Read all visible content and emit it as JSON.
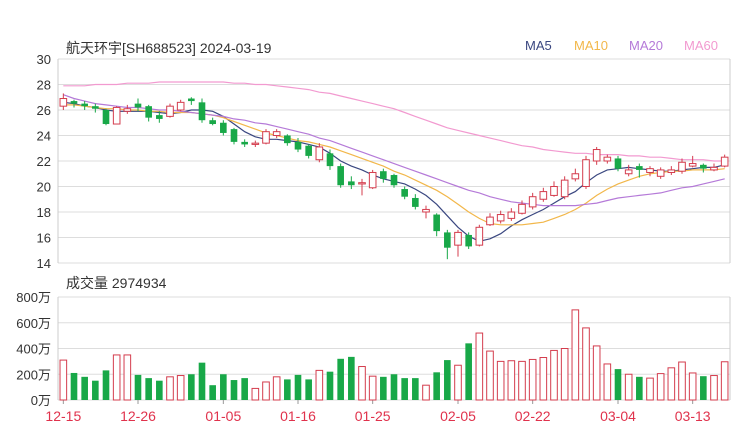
{
  "header": {
    "stock_label": "航天环宇[SH688523]",
    "date": "2024-03-19",
    "volume_label": "成交量",
    "volume_value": "2974934"
  },
  "legend": [
    {
      "label": "MA5",
      "color": "#3a4780"
    },
    {
      "label": "MA10",
      "color": "#f2b74a"
    },
    {
      "label": "MA20",
      "color": "#b57ad8"
    },
    {
      "label": "MA60",
      "color": "#f29ad0"
    }
  ],
  "colors": {
    "up": "#d43c4d",
    "down": "#18a848",
    "grid": "#dddddd",
    "axis_text": "#333333",
    "date_text": "#e0324c"
  },
  "chart_data": {
    "type": "candlestick",
    "price_axis": {
      "min": 14,
      "max": 30,
      "ticks": [
        14,
        16,
        18,
        20,
        22,
        24,
        26,
        28,
        30
      ]
    },
    "volume_axis": {
      "min": 0,
      "max": 800,
      "unit": "万",
      "ticks": [
        0,
        200,
        400,
        600,
        800
      ],
      "tick_labels": [
        "0万",
        "200万",
        "400万",
        "600万",
        "800万"
      ]
    },
    "x_labels": [
      {
        "label": "12-15",
        "index": 0
      },
      {
        "label": "12-26",
        "index": 7
      },
      {
        "label": "01-05",
        "index": 15
      },
      {
        "label": "01-16",
        "index": 22
      },
      {
        "label": "01-25",
        "index": 29
      },
      {
        "label": "02-05",
        "index": 37
      },
      {
        "label": "02-22",
        "index": 44
      },
      {
        "label": "03-04",
        "index": 52
      },
      {
        "label": "03-13",
        "index": 59
      }
    ],
    "candles": [
      [
        26.3,
        26.9,
        27.3,
        26.0,
        310
      ],
      [
        26.7,
        26.5,
        26.8,
        26.2,
        210
      ],
      [
        26.5,
        26.3,
        26.7,
        26.0,
        180
      ],
      [
        26.3,
        26.1,
        26.5,
        25.8,
        150
      ],
      [
        26.0,
        24.9,
        26.1,
        24.8,
        230
      ],
      [
        24.9,
        26.2,
        26.3,
        24.9,
        350
      ],
      [
        25.9,
        26.1,
        26.4,
        25.7,
        350
      ],
      [
        26.5,
        26.2,
        26.9,
        25.9,
        195
      ],
      [
        26.3,
        25.4,
        26.4,
        25.1,
        170
      ],
      [
        25.6,
        25.3,
        25.9,
        25.0,
        150
      ],
      [
        25.5,
        26.3,
        26.5,
        25.4,
        180
      ],
      [
        26.0,
        26.6,
        26.8,
        25.9,
        190
      ],
      [
        26.9,
        26.7,
        27.0,
        26.4,
        200
      ],
      [
        26.6,
        25.2,
        26.9,
        25.0,
        290
      ],
      [
        25.2,
        24.9,
        25.4,
        24.8,
        115
      ],
      [
        25.0,
        24.2,
        25.2,
        24.0,
        200
      ],
      [
        24.5,
        23.5,
        24.6,
        23.3,
        155
      ],
      [
        23.5,
        23.3,
        23.7,
        23.1,
        170
      ],
      [
        23.3,
        23.4,
        23.6,
        23.1,
        90
      ],
      [
        23.4,
        24.3,
        24.5,
        23.3,
        140
      ],
      [
        24.0,
        24.3,
        24.5,
        23.8,
        180
      ],
      [
        24.0,
        23.4,
        24.1,
        23.2,
        160
      ],
      [
        23.5,
        22.9,
        23.8,
        22.7,
        195
      ],
      [
        23.2,
        22.4,
        23.3,
        22.2,
        160
      ],
      [
        22.1,
        23.1,
        23.4,
        21.9,
        230
      ],
      [
        22.6,
        21.6,
        22.9,
        21.3,
        220
      ],
      [
        21.6,
        20.1,
        21.8,
        19.9,
        320
      ],
      [
        20.4,
        20.1,
        20.8,
        19.8,
        335
      ],
      [
        20.2,
        20.3,
        20.6,
        19.3,
        260
      ],
      [
        19.9,
        21.1,
        21.3,
        19.8,
        185
      ],
      [
        21.2,
        20.6,
        21.4,
        20.3,
        180
      ],
      [
        20.9,
        20.1,
        21.0,
        19.9,
        200
      ],
      [
        19.8,
        19.2,
        20.0,
        19.0,
        170
      ],
      [
        19.1,
        18.4,
        19.4,
        18.2,
        170
      ],
      [
        18.0,
        18.2,
        18.5,
        17.5,
        115
      ],
      [
        17.8,
        16.5,
        17.9,
        16.1,
        215
      ],
      [
        16.4,
        15.2,
        16.6,
        14.3,
        310
      ],
      [
        15.4,
        16.4,
        16.6,
        14.5,
        270
      ],
      [
        16.2,
        15.3,
        16.4,
        15.1,
        440
      ],
      [
        15.4,
        16.8,
        17.0,
        15.3,
        520
      ],
      [
        17.0,
        17.6,
        17.9,
        16.9,
        380
      ],
      [
        17.3,
        17.8,
        18.1,
        17.1,
        300
      ],
      [
        17.5,
        18.0,
        18.3,
        17.3,
        305
      ],
      [
        17.9,
        18.6,
        18.9,
        17.8,
        300
      ],
      [
        18.4,
        19.2,
        19.5,
        18.2,
        315
      ],
      [
        19.0,
        19.6,
        19.9,
        18.8,
        330
      ],
      [
        19.3,
        20.0,
        20.4,
        19.2,
        385
      ],
      [
        19.2,
        20.5,
        20.8,
        19.0,
        400
      ],
      [
        20.6,
        21.0,
        21.4,
        20.4,
        700
      ],
      [
        20.0,
        22.1,
        22.4,
        19.8,
        560
      ],
      [
        22.0,
        22.9,
        23.1,
        21.7,
        420
      ],
      [
        22.0,
        22.3,
        22.5,
        21.8,
        280
      ],
      [
        22.2,
        21.4,
        22.4,
        21.2,
        240
      ],
      [
        21.0,
        21.3,
        21.7,
        20.8,
        200
      ],
      [
        21.6,
        21.3,
        21.8,
        20.7,
        180
      ],
      [
        21.1,
        21.4,
        21.6,
        20.8,
        170
      ],
      [
        20.8,
        21.3,
        21.5,
        20.6,
        205
      ],
      [
        21.1,
        21.3,
        21.6,
        20.9,
        250
      ],
      [
        21.2,
        21.9,
        22.2,
        21.0,
        295
      ],
      [
        21.6,
        21.8,
        22.4,
        21.5,
        210
      ],
      [
        21.7,
        21.4,
        21.8,
        21.1,
        185
      ],
      [
        21.3,
        21.5,
        21.8,
        21.2,
        190
      ],
      [
        21.6,
        22.3,
        22.5,
        21.5,
        297
      ]
    ],
    "ma_lines": [
      {
        "name": "MA5",
        "color": "#3a4780",
        "values": [
          26.6,
          26.5,
          26.3,
          26.2,
          26.0,
          25.9,
          25.9,
          25.9,
          25.9,
          25.8,
          25.7,
          25.8,
          26.0,
          26.0,
          25.9,
          25.5,
          24.9,
          24.3,
          23.9,
          23.7,
          23.7,
          23.6,
          23.5,
          23.3,
          23.1,
          22.6,
          22.0,
          21.6,
          21.3,
          20.9,
          20.6,
          20.4,
          20.2,
          19.8,
          19.3,
          18.6,
          17.7,
          16.8,
          16.1,
          15.7,
          15.9,
          16.3,
          16.9,
          17.4,
          17.8,
          18.2,
          18.7,
          19.2,
          19.6,
          20.3,
          20.9,
          21.3,
          21.4,
          21.5,
          21.4,
          21.3,
          21.2,
          21.2,
          21.3,
          21.4,
          21.5,
          21.5,
          21.7
        ]
      },
      {
        "name": "MA10",
        "color": "#f2b74a",
        "values": [
          26.4,
          26.4,
          26.3,
          26.2,
          26.1,
          26.1,
          26.0,
          26.0,
          25.9,
          25.9,
          25.8,
          25.8,
          25.8,
          25.7,
          25.6,
          25.4,
          25.1,
          24.8,
          24.5,
          24.2,
          24.0,
          23.8,
          23.6,
          23.5,
          23.3,
          23.1,
          22.8,
          22.5,
          22.2,
          21.9,
          21.6,
          21.2,
          20.9,
          20.5,
          20.1,
          19.7,
          19.2,
          18.6,
          18.0,
          17.5,
          17.1,
          17.0,
          17.0,
          17.0,
          17.1,
          17.2,
          17.5,
          17.8,
          18.2,
          18.7,
          19.3,
          19.8,
          20.2,
          20.5,
          20.8,
          21.0,
          21.1,
          21.2,
          21.2,
          21.3,
          21.3,
          21.3,
          21.4
        ]
      },
      {
        "name": "MA20",
        "color": "#b57ad8",
        "values": [
          27.2,
          26.9,
          26.7,
          26.5,
          26.4,
          26.3,
          26.2,
          26.2,
          26.1,
          26.0,
          26.0,
          25.9,
          25.8,
          25.7,
          25.6,
          25.5,
          25.3,
          25.2,
          25.0,
          24.9,
          24.7,
          24.5,
          24.3,
          24.1,
          23.8,
          23.6,
          23.3,
          23.0,
          22.7,
          22.4,
          22.1,
          21.8,
          21.5,
          21.2,
          20.9,
          20.6,
          20.3,
          20.0,
          19.7,
          19.5,
          19.2,
          19.0,
          18.8,
          18.7,
          18.6,
          18.5,
          18.5,
          18.5,
          18.5,
          18.6,
          18.7,
          18.9,
          19.1,
          19.2,
          19.3,
          19.4,
          19.5,
          19.7,
          19.9,
          20.0,
          20.2,
          20.4,
          20.6
        ]
      },
      {
        "name": "MA60",
        "color": "#f29ad0",
        "values": [
          27.9,
          27.9,
          27.9,
          28.0,
          28.0,
          28.0,
          28.1,
          28.1,
          28.1,
          28.2,
          28.2,
          28.2,
          28.2,
          28.2,
          28.2,
          28.2,
          28.1,
          28.1,
          28.0,
          28.0,
          27.9,
          27.8,
          27.7,
          27.6,
          27.4,
          27.3,
          27.1,
          26.9,
          26.7,
          26.5,
          26.3,
          26.1,
          25.8,
          25.5,
          25.2,
          24.9,
          24.6,
          24.4,
          24.2,
          24.0,
          23.8,
          23.6,
          23.4,
          23.2,
          23.1,
          22.9,
          22.8,
          22.7,
          22.6,
          22.6,
          22.5,
          22.5,
          22.5,
          22.4,
          22.4,
          22.3,
          22.3,
          22.2,
          22.1,
          22.1,
          22.1,
          22.0,
          22.0
        ]
      }
    ]
  }
}
